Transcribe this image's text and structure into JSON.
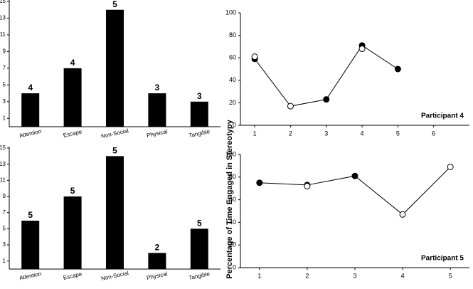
{
  "chart_data": [
    {
      "type": "bar",
      "categories": [
        "Attention",
        "Escape",
        "Non-Social",
        "Physical",
        "Tangible"
      ],
      "values": [
        4,
        7,
        14,
        4,
        3
      ],
      "annotations": [
        "4",
        "4",
        "5",
        "3",
        "3"
      ],
      "color": "#000000",
      "ylim": [
        0,
        15
      ],
      "yticks": [
        1,
        3,
        5,
        7,
        9,
        11,
        13,
        15
      ]
    },
    {
      "type": "bar",
      "categories": [
        "Attention",
        "Escape",
        "Non-Social",
        "Physical",
        "Tangible"
      ],
      "values": [
        6,
        9,
        14,
        2,
        5
      ],
      "annotations": [
        "5",
        "5",
        "5",
        "2",
        "5"
      ],
      "color": "#000000",
      "ylim": [
        0,
        15
      ],
      "yticks": [
        1,
        3,
        5,
        7,
        9,
        11,
        13,
        15
      ]
    },
    {
      "type": "line",
      "annotation": "Participant 4",
      "x": [
        1,
        2,
        3,
        4,
        5
      ],
      "xlim": [
        0.6,
        7
      ],
      "xticks": [
        1,
        2,
        3,
        4,
        5,
        6
      ],
      "ylim": [
        0,
        100
      ],
      "yticks": [
        0,
        20,
        40,
        60,
        80,
        100
      ],
      "series": [
        {
          "color": "#000000",
          "values": [
            59,
            null,
            23,
            71,
            50
          ]
        },
        {
          "color": "#ffffff",
          "values": [
            61,
            17,
            null,
            68,
            null
          ]
        }
      ]
    },
    {
      "type": "line",
      "annotation": "Participant 5",
      "ylabel": "Percentage of Time Engaged in Stereotypy",
      "x": [
        1,
        2,
        3,
        4,
        5
      ],
      "xlim": [
        0.6,
        5.4
      ],
      "xticks": [
        1,
        2,
        3,
        4,
        5
      ],
      "ylim": [
        0,
        100
      ],
      "yticks": [
        0,
        20,
        40,
        60,
        80,
        100
      ],
      "series": [
        {
          "color": "#000000",
          "values": [
            75,
            73,
            81,
            null,
            null
          ]
        },
        {
          "color": "#ffffff",
          "values": [
            null,
            72,
            null,
            47,
            89
          ]
        }
      ]
    }
  ]
}
